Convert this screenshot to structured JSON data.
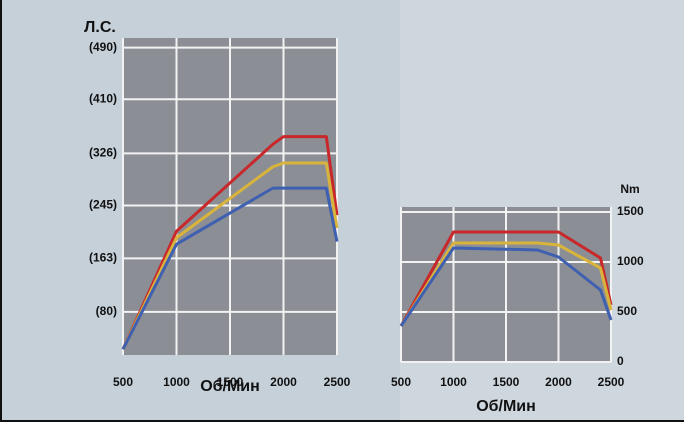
{
  "chart_data": [
    {
      "type": "line",
      "ylabel": "Л.С.",
      "xlabel": "Об/Мин",
      "x": [
        500,
        1000,
        1900,
        2000,
        2400,
        2500
      ],
      "series": [
        {
          "color": "#c8282a",
          "values": [
            22,
            205,
            340,
            352,
            352,
            230
          ]
        },
        {
          "color": "#d9b43c",
          "values": [
            22,
            195,
            305,
            311,
            311,
            210
          ]
        },
        {
          "color": "#3f5fb0",
          "values": [
            22,
            185,
            272,
            272,
            272,
            189
          ]
        }
      ],
      "xlim": [
        500,
        2500
      ],
      "xticks": [
        500,
        1000,
        1500,
        2000,
        2500
      ],
      "ylim": [
        13,
        505
      ],
      "yticks": [
        {
          "value": 80,
          "label": "(80)"
        },
        {
          "value": 163,
          "label": "(163)"
        },
        {
          "value": 245,
          "label": "(245)"
        },
        {
          "value": 326,
          "label": "(326)"
        },
        {
          "value": 410,
          "label": "(410)"
        },
        {
          "value": 490,
          "label": "(490)"
        }
      ],
      "grid": true
    },
    {
      "type": "line",
      "ylabel": "Nm",
      "xlabel": "Об/Мин",
      "x": [
        500,
        1000,
        1800,
        2000,
        2400,
        2500
      ],
      "series": [
        {
          "color": "#c8282a",
          "values": [
            360,
            1300,
            1300,
            1300,
            1040,
            570
          ]
        },
        {
          "color": "#d9b43c",
          "values": [
            360,
            1190,
            1190,
            1170,
            940,
            520
          ]
        },
        {
          "color": "#3f5fb0",
          "values": [
            360,
            1140,
            1120,
            1050,
            720,
            420
          ]
        }
      ],
      "xlim": [
        500,
        2500
      ],
      "xticks": [
        500,
        1000,
        1500,
        2000,
        2500
      ],
      "ylim": [
        0,
        1550
      ],
      "yticks": [
        0,
        500,
        1000,
        1500
      ],
      "grid": true
    }
  ]
}
